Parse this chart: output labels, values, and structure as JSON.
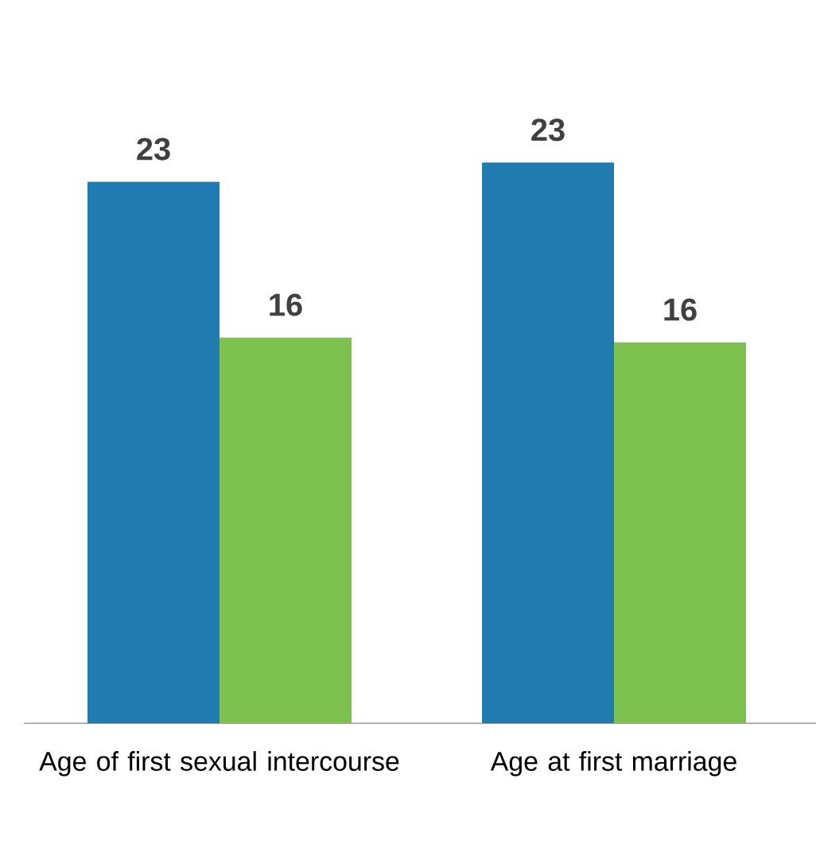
{
  "chart_data": {
    "type": "bar",
    "categories": [
      "Age of first sexual intercourse",
      "Age at first marriage"
    ],
    "series": [
      {
        "color": "#1f7bb0",
        "values": [
          22.6,
          23.4
        ],
        "value_labels": [
          "23",
          "23"
        ]
      },
      {
        "color": "#7dc24f",
        "values": [
          16.1,
          15.9
        ],
        "value_labels": [
          "16",
          "16"
        ]
      }
    ],
    "tick_labels": "x"
  }
}
